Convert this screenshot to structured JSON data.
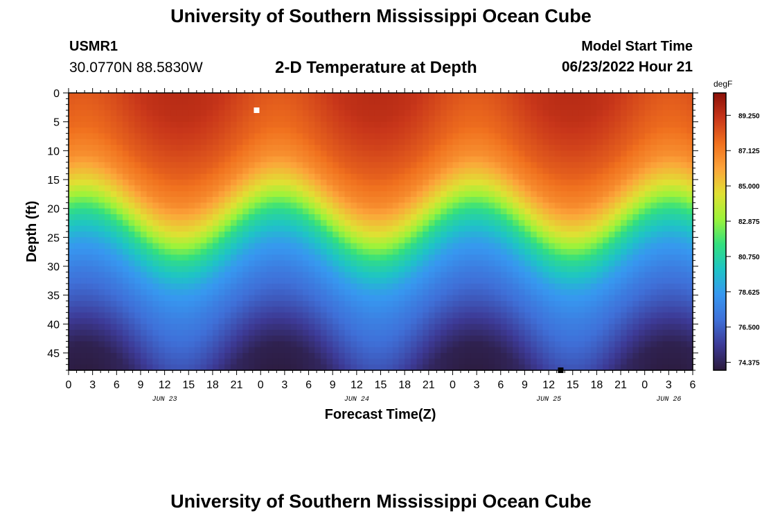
{
  "header": {
    "title_top": "University of Southern Mississippi Ocean Cube",
    "title_bottom": "University of Southern Mississippi Ocean Cube",
    "station_id": "USMR1",
    "coordinates": "30.0770N  88.5830W",
    "subtitle": "2-D Temperature at Depth",
    "model_start_label": "Model Start Time",
    "model_start_value": "06/23/2022 Hour 21"
  },
  "chart_data": {
    "type": "heatmap",
    "title": "2-D Temperature at Depth",
    "xlabel": "Forecast Time(Z)",
    "ylabel": "Depth (ft)",
    "x_start_hour": 0,
    "x_end_hour": 78,
    "x_tick_step_hours": 3,
    "x_tick_labels": [
      "0",
      "3",
      "6",
      "9",
      "12",
      "15",
      "18",
      "21",
      "0",
      "3",
      "6",
      "9",
      "12",
      "15",
      "18",
      "21",
      "0",
      "3",
      "6",
      "9",
      "12",
      "15",
      "18",
      "21",
      "0",
      "3",
      "6"
    ],
    "date_labels": [
      {
        "label": "JUN 23",
        "hour": 12
      },
      {
        "label": "JUN 24",
        "hour": 36
      },
      {
        "label": "JUN 25",
        "hour": 60
      },
      {
        "label": "JUN 26",
        "hour": 75
      }
    ],
    "ylim": [
      0,
      48
    ],
    "y_ticks": [
      0,
      5,
      10,
      15,
      20,
      25,
      30,
      35,
      40,
      45
    ],
    "colorbar": {
      "unit": "degF",
      "vmin": 73.9,
      "vmax": 90.6,
      "ticks": [
        "89.250",
        "87.125",
        "85.000",
        "82.875",
        "80.750",
        "78.625",
        "76.500",
        "74.375"
      ],
      "colors": [
        "#2b1a3b",
        "#3d3a96",
        "#3f70d8",
        "#3797f0",
        "#1ec4c6",
        "#33e07e",
        "#9cf33a",
        "#e0e033",
        "#fca43a",
        "#f0701e",
        "#c8361a",
        "#8a1008"
      ]
    },
    "temperature_profile": [
      {
        "depth": 0,
        "temp": 89.0
      },
      {
        "depth": 5,
        "temp": 88.6
      },
      {
        "depth": 10,
        "temp": 88.0
      },
      {
        "depth": 15,
        "temp": 86.8
      },
      {
        "depth": 20,
        "temp": 84.5
      },
      {
        "depth": 25,
        "temp": 81.0
      },
      {
        "depth": 30,
        "temp": 78.8
      },
      {
        "depth": 35,
        "temp": 77.4
      },
      {
        "depth": 40,
        "temp": 76.3
      },
      {
        "depth": 45,
        "temp": 75.2
      },
      {
        "depth": 48,
        "temp": 74.6
      }
    ],
    "markers": [
      {
        "label": "max",
        "hour": 23.5,
        "depth": 3,
        "color": "#ffffff"
      },
      {
        "label": "min",
        "hour": 61.5,
        "depth": 48,
        "color": "#000000"
      }
    ]
  }
}
